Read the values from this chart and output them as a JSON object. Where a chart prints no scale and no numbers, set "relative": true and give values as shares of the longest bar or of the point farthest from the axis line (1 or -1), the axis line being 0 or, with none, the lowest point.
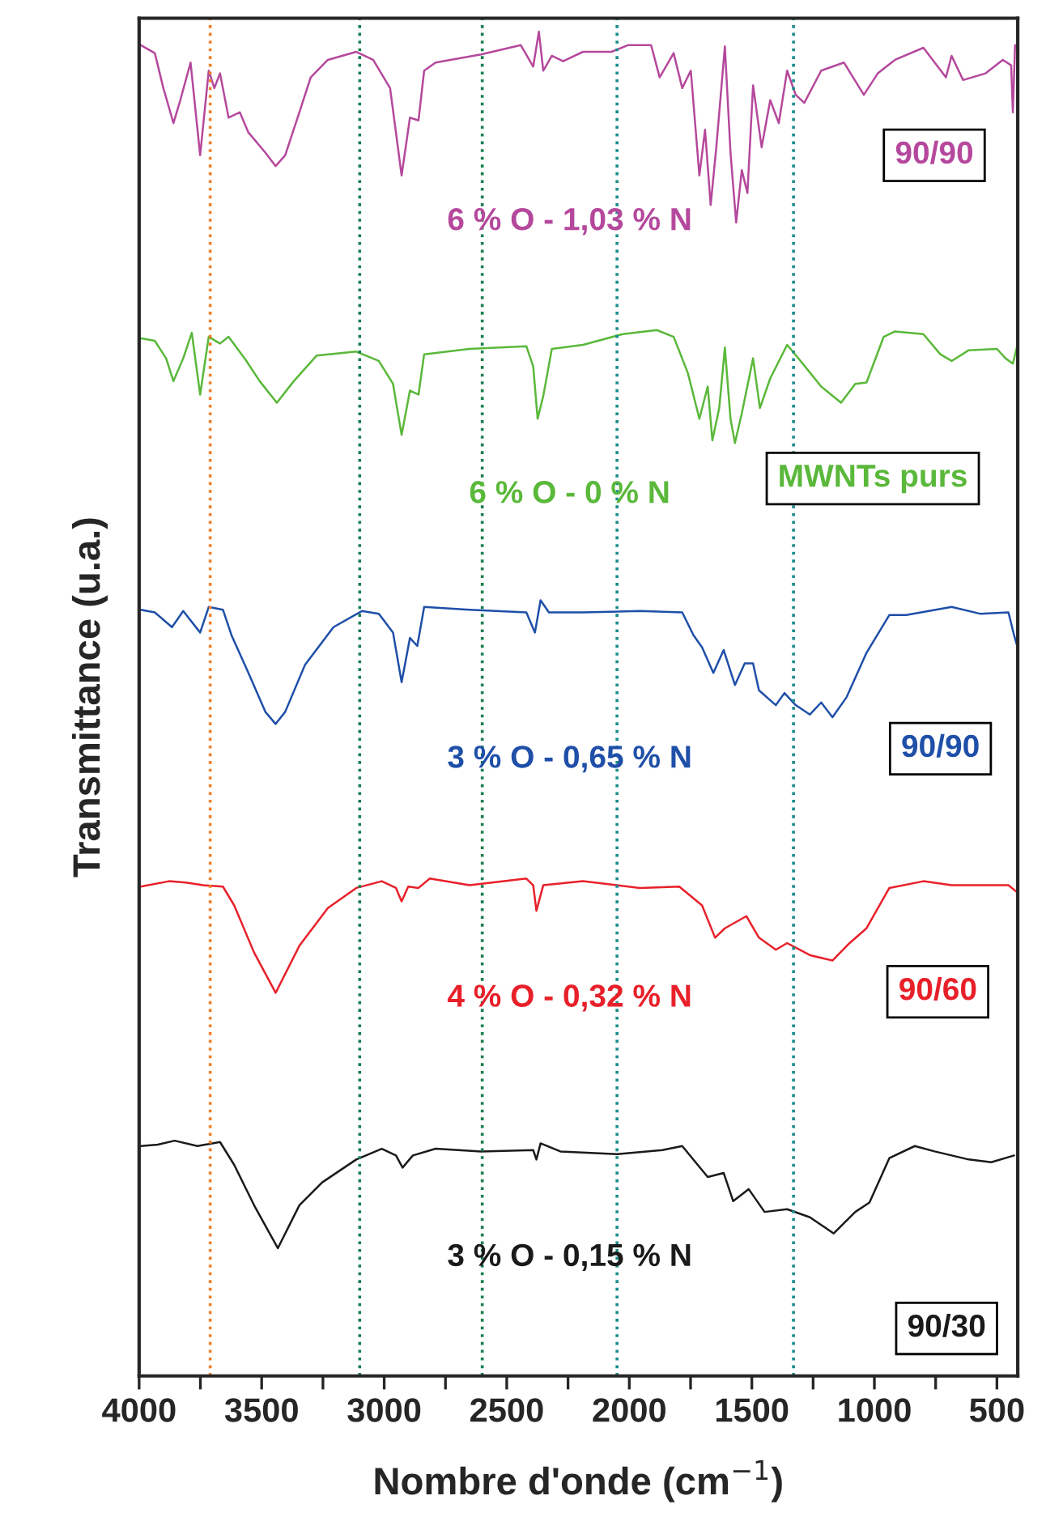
{
  "chart_data": {
    "type": "line",
    "relative": true,
    "xlabel": "Nombre d'onde (cm$^{−1}$)",
    "ylabel": "Transmittance (u.a.)",
    "xlim": [
      4000,
      415
    ],
    "xticks": [
      4000,
      {
        "value": 3750,
        "label": null
      },
      3500,
      {
        "value": 3250,
        "label": null
      },
      3000,
      {
        "value": 2750,
        "label": null
      },
      2500,
      {
        "value": 2250,
        "label": null
      },
      2000,
      {
        "value": 1750,
        "label": null
      },
      1500,
      {
        "value": 1250,
        "label": null
      },
      1000,
      {
        "value": 750,
        "label": null
      },
      500
    ],
    "tick_labels": "x",
    "grid": false,
    "marker": "none",
    "line_style": "solid",
    "ref_lines": [
      {
        "axis": "x",
        "value": 3710,
        "color": "#f07f2a",
        "line_style": "dotted"
      },
      {
        "axis": "x",
        "value": 3100,
        "color": "#1a7f4f",
        "line_style": "dotted"
      },
      {
        "axis": "x",
        "value": 2600,
        "color": "#1a7f4f",
        "line_style": "dotted"
      },
      {
        "axis": "x",
        "value": 2050,
        "color": "#1a8c8c",
        "line_style": "dotted"
      },
      {
        "axis": "x",
        "value": 1330,
        "color": "#1a8c8c",
        "line_style": "dotted"
      }
    ],
    "annotations": [
      "6 % O - 1,03 % N",
      "90/90",
      "6 % O - 0 % N",
      "MWNTs purs",
      "3 % O - 0,65 % N",
      "90/90",
      "4 % O - 0,32 % N",
      "90/60",
      "3 % O - 0,15 % N",
      "90/30"
    ],
    "series": [
      {
        "color": "#b5489c",
        "x": [
          3994,
          3936,
          3901,
          3860,
          3832,
          3790,
          3751,
          3716,
          3693,
          3670,
          3635,
          3589,
          3554,
          3485,
          3443,
          3404,
          3346,
          3300,
          3230,
          3114,
          3045,
          2976,
          2929,
          2895,
          2860,
          2837,
          2790,
          2605,
          2443,
          2392,
          2369,
          2351,
          2316,
          2270,
          2189,
          2073,
          2004,
          1911,
          1876,
          1819,
          1784,
          1749,
          1714,
          1691,
          1668,
          1645,
          1610,
          1587,
          1564,
          1541,
          1518,
          1495,
          1460,
          1425,
          1390,
          1356,
          1321,
          1286,
          1217,
          1124,
          1043,
          986,
          916,
          800,
          708,
          685,
          638,
          546,
          476,
          442,
          435,
          426
        ],
        "values": [
          0.99,
          0.984,
          0.958,
          0.932,
          0.949,
          0.977,
          0.908,
          0.971,
          0.958,
          0.969,
          0.936,
          0.94,
          0.925,
          0.91,
          0.9,
          0.908,
          0.94,
          0.966,
          0.979,
          0.985,
          0.979,
          0.958,
          0.893,
          0.936,
          0.934,
          0.971,
          0.977,
          0.983,
          0.99,
          0.974,
          1.0,
          0.971,
          0.982,
          0.978,
          0.985,
          0.985,
          0.99,
          0.99,
          0.966,
          0.984,
          0.958,
          0.971,
          0.893,
          0.927,
          0.871,
          0.914,
          0.989,
          0.91,
          0.858,
          0.897,
          0.88,
          0.96,
          0.914,
          0.949,
          0.932,
          0.971,
          0.953,
          0.947,
          0.971,
          0.977,
          0.953,
          0.969,
          0.979,
          0.988,
          0.966,
          0.982,
          0.964,
          0.969,
          0.979,
          0.975,
          0.94,
          0.99
        ]
      },
      {
        "color": "#5ab83a",
        "x": [
          3994,
          3936,
          3890,
          3860,
          3820,
          3785,
          3751,
          3716,
          3670,
          3635,
          3566,
          3508,
          3438,
          3369,
          3276,
          3114,
          3022,
          2964,
          2929,
          2895,
          2860,
          2837,
          2652,
          2420,
          2392,
          2374,
          2351,
          2316,
          2189,
          2027,
          1888,
          1819,
          1761,
          1714,
          1680,
          1661,
          1633,
          1610,
          1587,
          1569,
          1541,
          1495,
          1467,
          1425,
          1356,
          1310,
          1217,
          1136,
          1078,
          1032,
          962,
          916,
          800,
          731,
          685,
          615,
          500,
          465,
          435,
          419
        ],
        "values": [
          0.772,
          0.77,
          0.757,
          0.74,
          0.757,
          0.776,
          0.73,
          0.773,
          0.768,
          0.773,
          0.756,
          0.74,
          0.724,
          0.74,
          0.759,
          0.762,
          0.755,
          0.738,
          0.7,
          0.733,
          0.73,
          0.76,
          0.764,
          0.766,
          0.751,
          0.712,
          0.729,
          0.764,
          0.767,
          0.775,
          0.778,
          0.773,
          0.746,
          0.712,
          0.736,
          0.696,
          0.72,
          0.765,
          0.712,
          0.694,
          0.716,
          0.757,
          0.72,
          0.742,
          0.767,
          0.757,
          0.736,
          0.724,
          0.738,
          0.739,
          0.773,
          0.777,
          0.775,
          0.76,
          0.755,
          0.763,
          0.764,
          0.757,
          0.753,
          0.765
        ]
      },
      {
        "color": "#1f4fa8",
        "x": [
          3994,
          3936,
          3866,
          3820,
          3751,
          3716,
          3658,
          3623,
          3554,
          3485,
          3443,
          3404,
          3323,
          3207,
          3091,
          3022,
          2964,
          2929,
          2895,
          2865,
          2837,
          2652,
          2420,
          2385,
          2362,
          2328,
          2189,
          1957,
          1784,
          1738,
          1703,
          1657,
          1615,
          1569,
          1529,
          1495,
          1471,
          1402,
          1367,
          1321,
          1263,
          1217,
          1171,
          1113,
          1032,
          939,
          870,
          685,
          569,
          453,
          430,
          419
        ],
        "values": [
          0.57,
          0.568,
          0.557,
          0.569,
          0.553,
          0.572,
          0.57,
          0.551,
          0.523,
          0.494,
          0.485,
          0.494,
          0.529,
          0.557,
          0.569,
          0.567,
          0.553,
          0.516,
          0.549,
          0.543,
          0.572,
          0.57,
          0.568,
          0.553,
          0.577,
          0.568,
          0.568,
          0.569,
          0.568,
          0.551,
          0.542,
          0.523,
          0.54,
          0.514,
          0.53,
          0.53,
          0.51,
          0.499,
          0.508,
          0.499,
          0.492,
          0.501,
          0.49,
          0.505,
          0.538,
          0.566,
          0.566,
          0.572,
          0.567,
          0.568,
          0.551,
          0.544
        ]
      },
      {
        "color": "#e8202a",
        "x": [
          3994,
          3878,
          3809,
          3739,
          3658,
          3612,
          3531,
          3443,
          3346,
          3230,
          3114,
          3010,
          2952,
          2929,
          2902,
          2860,
          2814,
          2652,
          2420,
          2392,
          2379,
          2351,
          2189,
          1957,
          1796,
          1703,
          1650,
          1610,
          1522,
          1471,
          1402,
          1356,
          1263,
          1171,
          1101,
          1032,
          939,
          800,
          685,
          569,
          453,
          419
        ],
        "values": [
          0.364,
          0.368,
          0.367,
          0.365,
          0.364,
          0.35,
          0.315,
          0.285,
          0.32,
          0.348,
          0.363,
          0.368,
          0.363,
          0.353,
          0.364,
          0.363,
          0.37,
          0.365,
          0.37,
          0.365,
          0.346,
          0.365,
          0.368,
          0.363,
          0.364,
          0.35,
          0.326,
          0.333,
          0.342,
          0.326,
          0.317,
          0.322,
          0.313,
          0.309,
          0.322,
          0.333,
          0.363,
          0.368,
          0.365,
          0.365,
          0.365,
          0.36
        ]
      },
      {
        "color": "#1a1a1a",
        "x": [
          3994,
          3924,
          3855,
          3762,
          3670,
          3612,
          3531,
          3434,
          3346,
          3253,
          3114,
          3010,
          2952,
          2925,
          2883,
          2790,
          2605,
          2392,
          2379,
          2362,
          2281,
          2050,
          1865,
          1784,
          1680,
          1615,
          1576,
          1513,
          1448,
          1356,
          1263,
          1166,
          1078,
          1020,
          939,
          835,
          754,
          615,
          523,
          430
        ],
        "values": [
          0.171,
          0.172,
          0.175,
          0.171,
          0.174,
          0.157,
          0.127,
          0.095,
          0.127,
          0.144,
          0.161,
          0.169,
          0.164,
          0.155,
          0.164,
          0.169,
          0.167,
          0.168,
          0.161,
          0.173,
          0.167,
          0.165,
          0.168,
          0.171,
          0.148,
          0.151,
          0.13,
          0.139,
          0.122,
          0.124,
          0.118,
          0.106,
          0.122,
          0.129,
          0.162,
          0.171,
          0.167,
          0.161,
          0.159,
          0.164
        ]
      }
    ]
  }
}
